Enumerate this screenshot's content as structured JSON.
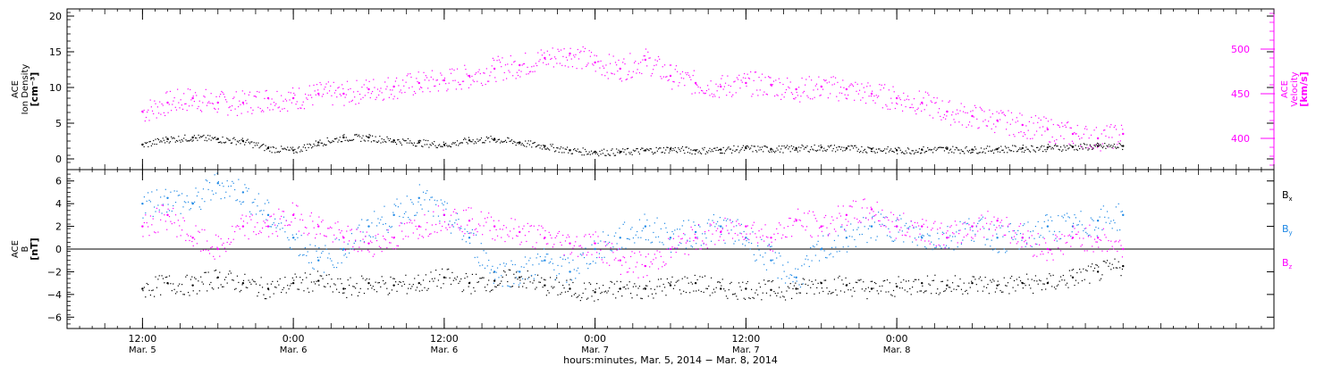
{
  "colors": {
    "black": "#000000",
    "magenta": "#ff00ff",
    "blue": "#1e88e5"
  },
  "chart_data": [
    {
      "type": "scatter",
      "panel": "top",
      "left_axis": {
        "label_lines": [
          "ACE",
          "Ion Density",
          "[cm⁻³]"
        ],
        "range": [
          -1.5,
          21
        ],
        "ticks": [
          0,
          5,
          10,
          15,
          20
        ],
        "tick_labels": [
          "0",
          "5",
          "10",
          "15",
          "20"
        ]
      },
      "right_axis": {
        "label_lines": [
          "ACE",
          "Velocity",
          "[km/s]"
        ],
        "range": [
          365,
          545
        ],
        "ticks": [
          400,
          450,
          500
        ],
        "tick_labels": [
          "400",
          "450",
          "500"
        ],
        "color": "#ff00ff"
      },
      "series": [
        {
          "axis": "left",
          "color": "#000000",
          "x_hours": [
            0,
            2,
            4,
            6,
            8,
            10,
            12,
            14,
            16,
            18,
            20,
            22,
            24,
            26,
            28,
            30,
            32,
            34,
            36,
            38,
            40,
            42,
            44,
            46,
            48,
            50,
            52,
            54,
            56,
            58,
            60,
            62,
            64,
            66,
            68,
            70,
            72,
            74,
            76,
            78
          ],
          "values": [
            2.0,
            2.8,
            3.0,
            2.8,
            2.5,
            1.5,
            1.2,
            2.3,
            3.0,
            3.0,
            2.6,
            2.3,
            2.0,
            2.6,
            2.8,
            2.3,
            1.8,
            1.2,
            1.0,
            1.0,
            1.2,
            1.4,
            1.2,
            1.3,
            1.5,
            1.4,
            1.5,
            1.6,
            1.5,
            1.4,
            1.2,
            1.3,
            1.4,
            1.3,
            1.4,
            1.5,
            1.6,
            1.7,
            1.8,
            1.8
          ]
        },
        {
          "axis": "right",
          "color": "#ff00ff",
          "x_hours": [
            0,
            2,
            4,
            6,
            8,
            10,
            12,
            14,
            16,
            18,
            20,
            22,
            24,
            26,
            28,
            30,
            32,
            34,
            36,
            38,
            40,
            42,
            44,
            46,
            48,
            50,
            52,
            54,
            56,
            58,
            60,
            62,
            64,
            66,
            68,
            70,
            72,
            74,
            76,
            78
          ],
          "values": [
            430,
            440,
            445,
            440,
            440,
            445,
            445,
            450,
            450,
            455,
            458,
            462,
            465,
            470,
            478,
            482,
            490,
            495,
            485,
            478,
            488,
            470,
            462,
            458,
            462,
            460,
            455,
            458,
            455,
            450,
            445,
            440,
            430,
            425,
            420,
            415,
            410,
            405,
            400,
            405
          ]
        }
      ]
    },
    {
      "type": "scatter",
      "panel": "bottom",
      "left_axis": {
        "label_lines": [
          "ACE",
          "B",
          "[nT]"
        ],
        "range": [
          -7,
          7
        ],
        "ticks": [
          -6,
          -4,
          -2,
          0,
          2,
          4,
          6
        ],
        "tick_labels": [
          "−6",
          "−4",
          "−2",
          "0",
          "2",
          "4",
          "6"
        ]
      },
      "zero_line": true,
      "legend": [
        {
          "name": "B",
          "subscript": "x",
          "color": "#000000"
        },
        {
          "name": "B",
          "subscript": "y",
          "color": "#1e88e5"
        },
        {
          "name": "B",
          "subscript": "z",
          "color": "#ff00ff"
        }
      ],
      "series": [
        {
          "name": "Bx",
          "color": "#000000",
          "x_hours": [
            0,
            2,
            4,
            6,
            8,
            10,
            12,
            14,
            16,
            18,
            20,
            22,
            24,
            26,
            28,
            30,
            32,
            34,
            36,
            38,
            40,
            42,
            44,
            46,
            48,
            50,
            52,
            54,
            56,
            58,
            60,
            62,
            64,
            66,
            68,
            70,
            72,
            74,
            76,
            78
          ],
          "values": [
            -3.5,
            -3.0,
            -3.2,
            -2.5,
            -3.0,
            -3.5,
            -3.0,
            -2.8,
            -3.5,
            -3.0,
            -3.2,
            -3.0,
            -2.5,
            -3.0,
            -2.8,
            -2.5,
            -3.2,
            -3.5,
            -3.8,
            -3.5,
            -3.5,
            -3.2,
            -3.0,
            -3.5,
            -3.5,
            -3.6,
            -3.5,
            -3.0,
            -3.2,
            -3.5,
            -3.3,
            -3.0,
            -3.2,
            -3.0,
            -3.2,
            -3.0,
            -3.0,
            -2.5,
            -2.0,
            -1.5
          ]
        },
        {
          "name": "By",
          "color": "#1e88e5",
          "x_hours": [
            0,
            2,
            4,
            6,
            8,
            10,
            12,
            14,
            16,
            18,
            20,
            22,
            24,
            26,
            28,
            30,
            32,
            34,
            36,
            38,
            40,
            42,
            44,
            46,
            48,
            50,
            52,
            54,
            56,
            58,
            60,
            62,
            64,
            66,
            68,
            70,
            72,
            74,
            76,
            78
          ],
          "values": [
            4.0,
            4.5,
            4.0,
            5.8,
            5.0,
            3.0,
            1.0,
            -1.0,
            0.0,
            2.0,
            3.0,
            4.5,
            3.0,
            1.0,
            -2.0,
            -2.0,
            -1.0,
            -2.0,
            0.0,
            1.0,
            2.0,
            1.0,
            1.5,
            2.0,
            1.0,
            -1.0,
            -2.5,
            0.0,
            1.0,
            2.0,
            2.0,
            1.0,
            1.0,
            2.0,
            1.0,
            1.0,
            2.0,
            2.0,
            2.5,
            3.0
          ]
        },
        {
          "name": "Bz",
          "color": "#ff00ff",
          "x_hours": [
            0,
            2,
            4,
            6,
            8,
            10,
            12,
            14,
            16,
            18,
            20,
            22,
            24,
            26,
            28,
            30,
            32,
            34,
            36,
            38,
            40,
            42,
            44,
            46,
            48,
            50,
            52,
            54,
            56,
            58,
            60,
            62,
            64,
            66,
            68,
            70,
            72,
            74,
            76,
            78
          ],
          "values": [
            2.0,
            3.0,
            1.0,
            0.0,
            2.0,
            2.0,
            3.0,
            2.0,
            1.0,
            0.5,
            1.0,
            2.0,
            3.0,
            2.5,
            2.0,
            1.5,
            1.0,
            0.5,
            0.5,
            -1.0,
            -1.5,
            0.0,
            1.0,
            1.5,
            2.0,
            1.0,
            2.5,
            2.0,
            3.0,
            3.5,
            2.0,
            2.0,
            1.0,
            2.0,
            2.5,
            1.0,
            0.0,
            1.0,
            1.0,
            0.0
          ]
        }
      ]
    }
  ],
  "x_axis": {
    "range_hours": [
      -6,
      90
    ],
    "ticks": [
      {
        "hour": 0,
        "time": "12:00",
        "date": "Mar. 5"
      },
      {
        "hour": 12,
        "time": "0:00",
        "date": "Mar. 6"
      },
      {
        "hour": 24,
        "time": "12:00",
        "date": "Mar. 6"
      },
      {
        "hour": 36,
        "time": "0:00",
        "date": "Mar. 7"
      },
      {
        "hour": 48,
        "time": "12:00",
        "date": "Mar. 7"
      },
      {
        "hour": 60,
        "time": "0:00",
        "date": "Mar. 8"
      }
    ],
    "title": "hours:minutes, Mar. 5, 2014 − Mar. 8, 2014"
  }
}
